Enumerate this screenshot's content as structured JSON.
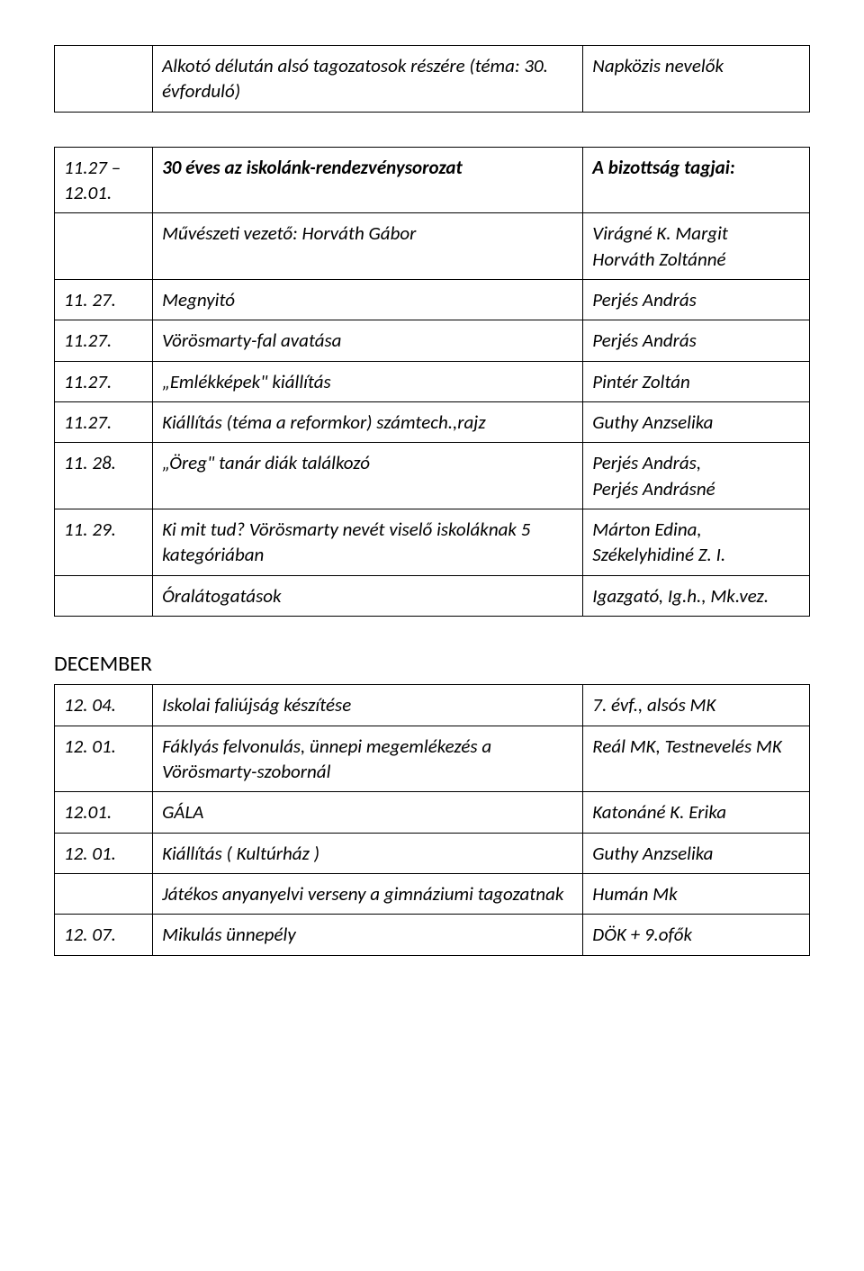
{
  "table1": {
    "rows": [
      {
        "date": "",
        "desc": "Alkotó délután alsó tagozatosok részére (téma: 30. évforduló)",
        "who": "Napközis nevelők"
      }
    ]
  },
  "table2": {
    "header": {
      "date": "11.27 – 12.01.",
      "desc": "30 éves az iskolánk-rendezvénysorozat",
      "who": "A bizottság tagjai:"
    },
    "rows": [
      {
        "date": "",
        "desc": "Művészeti vezető: Horváth Gábor",
        "who": "Virágné K. Margit\nHorváth Zoltánné"
      },
      {
        "date": "11. 27.",
        "desc": "Megnyitó",
        "who": "Perjés András"
      },
      {
        "date": "11.27.",
        "desc": "Vörösmarty-fal avatása",
        "who": "Perjés András"
      },
      {
        "date": "11.27.",
        "desc": "„Emlékképek\" kiállítás",
        "who": "Pintér Zoltán"
      },
      {
        "date": "11.27.",
        "desc": "Kiállítás (téma a reformkor) számtech.,rajz",
        "who": "Guthy Anzselika"
      },
      {
        "date": "11. 28.",
        "desc": "„Öreg\" tanár  diák találkozó",
        "who": "Perjés András,\nPerjés Andrásné"
      },
      {
        "date": "11. 29.",
        "desc": "Ki mit tud? Vörösmarty nevét viselő iskoláknak 5 kategóriában",
        "who": "Márton Edina,\nSzékelyhidiné Z. I."
      },
      {
        "date": "",
        "desc": "Óralátogatások",
        "who": "Igazgató, Ig.h., Mk.vez."
      }
    ]
  },
  "december": {
    "heading": "DECEMBER",
    "rows": [
      {
        "date": "12. 04.",
        "desc": "Iskolai faliújság készítése",
        "who": "7. évf., alsós MK"
      },
      {
        "date": "12. 01.",
        "desc": "Fáklyás felvonulás, ünnepi megemlékezés a Vörösmarty-szobornál",
        "who": "Reál MK, Testnevelés MK"
      },
      {
        "date": "12.01.",
        "desc": "GÁLA",
        "who": "Katonáné K. Erika"
      },
      {
        "date": "12. 01.",
        "desc": "Kiállítás ( Kultúrház )",
        "who": "Guthy Anzselika"
      },
      {
        "date": "",
        "desc": "Játékos anyanyelvi verseny a gimnáziumi tagozatnak",
        "who": "Humán Mk"
      },
      {
        "date": "12. 07.",
        "desc": "Mikulás ünnepély",
        "who": "DÖK + 9.ofők"
      }
    ]
  }
}
